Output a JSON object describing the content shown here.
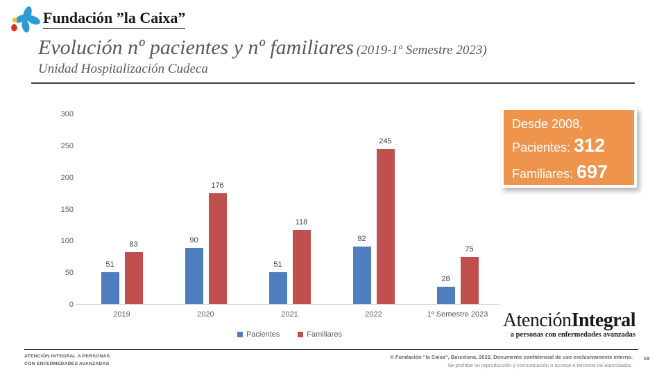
{
  "brand": {
    "logo_text": "Fundación ”la Caixa”"
  },
  "header": {
    "title_main": "Evolución nº pacientes y nº familiares",
    "title_paren": "(2019-1º Semestre 2023)",
    "subtitle": "Unidad Hospitalización Cudeca"
  },
  "chart_data": {
    "type": "bar",
    "title": "",
    "xlabel": "",
    "ylabel": "",
    "categories": [
      "2019",
      "2020",
      "2021",
      "2022",
      "1º Semestre 2023"
    ],
    "series": [
      {
        "name": "Pacientes",
        "color": "#4e7ebe",
        "values": [
          51,
          90,
          51,
          92,
          28
        ]
      },
      {
        "name": "Familiares",
        "color": "#c0504d",
        "values": [
          83,
          176,
          118,
          245,
          75
        ]
      }
    ],
    "ylim": [
      0,
      300
    ],
    "yticks": [
      0,
      50,
      100,
      150,
      200,
      250,
      300
    ],
    "grid": false,
    "legend_position": "bottom",
    "data_labels": true
  },
  "highlight_box": {
    "bg_color": "#ef944d",
    "line1": "Desde 2008,",
    "pacientes_label": "Pacientes:",
    "pacientes_value": "312",
    "familiares_label": "Familiares:",
    "familiares_value": "697"
  },
  "secondary_logo": {
    "part1": "Atención",
    "part2": "Integral",
    "tagline": "a personas con enfermedades avanzadas"
  },
  "footer": {
    "left_line1": "ATENCIÓN INTEGRAL A PERSONAS",
    "left_line2": "CON ENFERMEDADES AVANZADAS",
    "right_line1": "© Fundación “la Caixa”, Barcelona,  2022. Documento confidencial  de uso exclusivamente interno.",
    "right_line2": "Se prohíbe su reproducción y comunicación o acceso a terceros no autorizados.",
    "page_number": "19"
  }
}
